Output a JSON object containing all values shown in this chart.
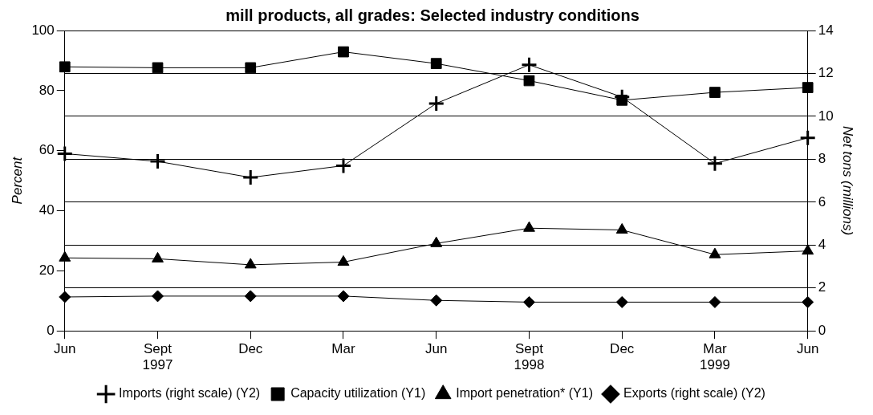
{
  "chart_data": {
    "type": "line",
    "title": "mill products, all grades: Selected industry conditions",
    "ylabel": "Percent",
    "y2label": "Net tons (millions)",
    "categories": [
      "Jun",
      "Sept\n1997",
      "Dec",
      "Mar",
      "Jun",
      "Sept\n1998",
      "Dec",
      "Mar\n1999",
      "Jun"
    ],
    "series": [
      {
        "name": "Capacity utilization (Y1)",
        "color": "#000000",
        "marker": "square",
        "values": [
          87.9,
          87.6,
          87.6,
          92.9,
          89,
          83.3,
          76.8,
          79.4,
          81
        ]
      },
      {
        "name": "Import penetration* (Y1)",
        "color": "#000000",
        "marker": "triangle",
        "values": [
          24.3,
          24,
          22,
          22.9,
          29.1,
          34.2,
          33.6,
          25.4,
          26.6
        ]
      },
      {
        "name": "Imports (right scale) (Y2)",
        "color": "#000000",
        "marker": "cross",
        "axis": "y2",
        "values": [
          8.26,
          7.9,
          7.15,
          7.7,
          10.6,
          12.4,
          10.9,
          7.8,
          9.0
        ]
      },
      {
        "name": "Exports (right scale) (Y2)",
        "color": "#000000",
        "marker": "diamond",
        "axis": "y2",
        "values": [
          1.58,
          1.62,
          1.62,
          1.62,
          1.42,
          1.34,
          1.34,
          1.34,
          1.34
        ]
      }
    ],
    "ylim": [
      0,
      100
    ],
    "yticks": [
      0,
      20,
      40,
      60,
      80,
      100
    ],
    "y2lim": [
      0,
      14
    ],
    "y2ticks": [
      0,
      2,
      4,
      6,
      8,
      10,
      12,
      14
    ],
    "grid": true,
    "legend": "bottom"
  }
}
